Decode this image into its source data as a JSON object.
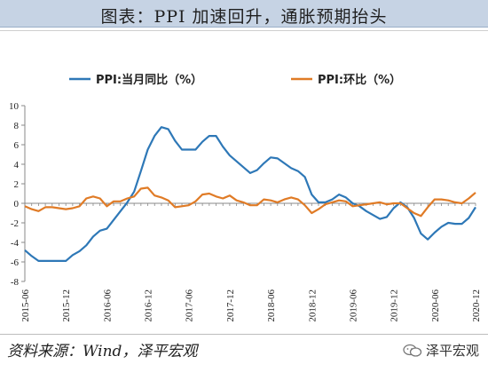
{
  "header": {
    "title": "图表：PPI 加速回升，通胀预期抬头"
  },
  "footer": {
    "source": "资料来源：Wind，泽平宏观",
    "brand": "泽平宏观"
  },
  "colors": {
    "series1": "#2e78b7",
    "series2": "#e07b26",
    "axis": "#888888"
  },
  "icons": {
    "brand": "wechat-icon"
  },
  "chart_data": {
    "type": "line",
    "title": "",
    "xlabel": "",
    "ylabel": "",
    "ylim": [
      -8,
      10
    ],
    "yticks": [
      -8,
      -6,
      -4,
      -2,
      0,
      2,
      4,
      6,
      8,
      10
    ],
    "grid": false,
    "legend_position": "top",
    "xtick_labels": [
      "2015-06",
      "2015-12",
      "2016-06",
      "2016-12",
      "2017-06",
      "2017-12",
      "2018-06",
      "2018-12",
      "2019-06",
      "2019-12",
      "2020-06",
      "2020-12"
    ],
    "x": [
      "2015-06",
      "2015-07",
      "2015-08",
      "2015-09",
      "2015-10",
      "2015-11",
      "2015-12",
      "2016-01",
      "2016-02",
      "2016-03",
      "2016-04",
      "2016-05",
      "2016-06",
      "2016-07",
      "2016-08",
      "2016-09",
      "2016-10",
      "2016-11",
      "2016-12",
      "2017-01",
      "2017-02",
      "2017-03",
      "2017-04",
      "2017-05",
      "2017-06",
      "2017-07",
      "2017-08",
      "2017-09",
      "2017-10",
      "2017-11",
      "2017-12",
      "2018-01",
      "2018-02",
      "2018-03",
      "2018-04",
      "2018-05",
      "2018-06",
      "2018-07",
      "2018-08",
      "2018-09",
      "2018-10",
      "2018-11",
      "2018-12",
      "2019-01",
      "2019-02",
      "2019-03",
      "2019-04",
      "2019-05",
      "2019-06",
      "2019-07",
      "2019-08",
      "2019-09",
      "2019-10",
      "2019-11",
      "2019-12",
      "2020-01",
      "2020-02",
      "2020-03",
      "2020-04",
      "2020-05",
      "2020-06",
      "2020-07",
      "2020-08",
      "2020-09",
      "2020-10",
      "2020-11",
      "2020-12"
    ],
    "series": [
      {
        "name": "PPI:当月同比（%）",
        "values": [
          -4.8,
          -5.4,
          -5.9,
          -5.9,
          -5.9,
          -5.9,
          -5.9,
          -5.3,
          -4.9,
          -4.3,
          -3.4,
          -2.8,
          -2.6,
          -1.7,
          -0.8,
          0.1,
          1.2,
          3.3,
          5.5,
          6.9,
          7.8,
          7.6,
          6.4,
          5.5,
          5.5,
          5.5,
          6.3,
          6.9,
          6.9,
          5.8,
          4.9,
          4.3,
          3.7,
          3.1,
          3.4,
          4.1,
          4.7,
          4.6,
          4.1,
          3.6,
          3.3,
          2.7,
          0.9,
          0.1,
          0.1,
          0.4,
          0.9,
          0.6,
          0.0,
          -0.3,
          -0.8,
          -1.2,
          -1.6,
          -1.4,
          -0.5,
          0.1,
          -0.4,
          -1.5,
          -3.1,
          -3.7,
          -3.0,
          -2.4,
          -2.0,
          -2.1,
          -2.1,
          -1.5,
          -0.4
        ]
      },
      {
        "name": "PPI:环比（%）",
        "values": [
          -0.3,
          -0.6,
          -0.8,
          -0.4,
          -0.4,
          -0.5,
          -0.6,
          -0.5,
          -0.3,
          0.5,
          0.7,
          0.5,
          -0.3,
          0.2,
          0.2,
          0.5,
          0.7,
          1.5,
          1.6,
          0.8,
          0.6,
          0.3,
          -0.4,
          -0.3,
          -0.2,
          0.2,
          0.9,
          1.0,
          0.7,
          0.5,
          0.8,
          0.3,
          0.1,
          -0.2,
          -0.2,
          0.4,
          0.3,
          0.1,
          0.4,
          0.6,
          0.4,
          -0.2,
          -1.0,
          -0.6,
          -0.1,
          0.1,
          0.3,
          0.2,
          -0.3,
          -0.2,
          -0.1,
          0.0,
          0.1,
          -0.1,
          0.0,
          0.0,
          -0.5,
          -1.0,
          -1.3,
          -0.4,
          0.4,
          0.4,
          0.3,
          0.1,
          0.0,
          0.5,
          1.1
        ]
      }
    ]
  }
}
